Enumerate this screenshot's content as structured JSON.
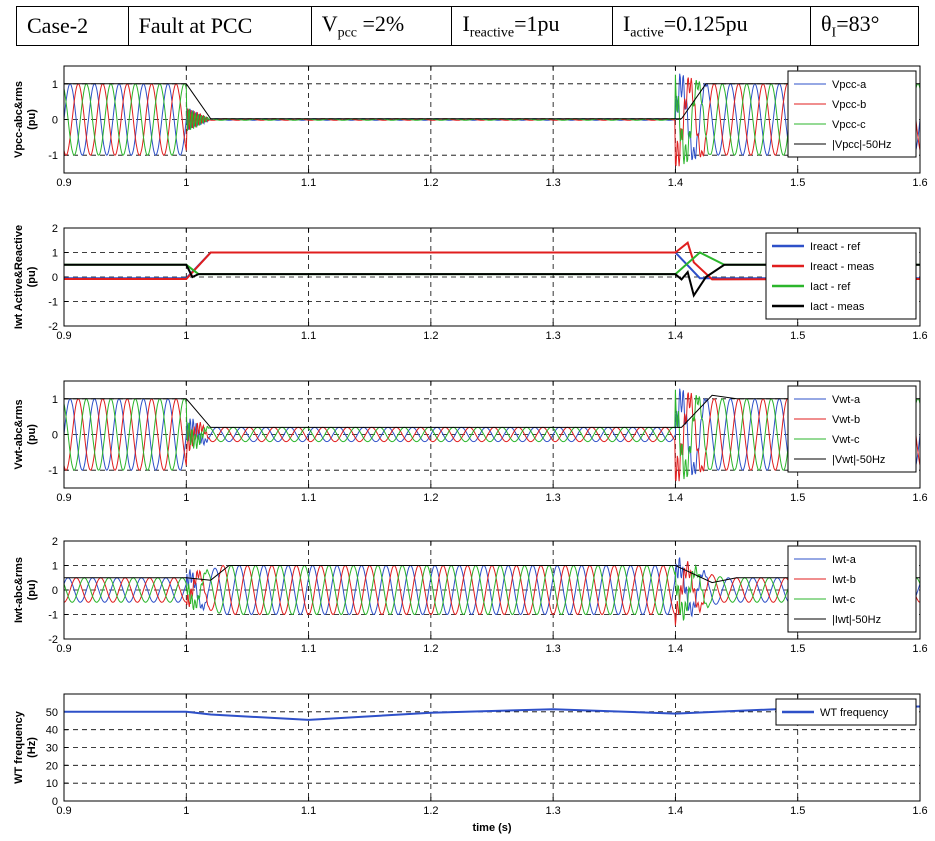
{
  "header": {
    "case": "Case-2",
    "fault": "Fault at PCC",
    "vpcc": {
      "sym": "V",
      "sub": "pcc",
      "val": " =2%"
    },
    "ireact": {
      "sym": "I",
      "sub": "reactive",
      "val": "=1pu"
    },
    "iact": {
      "sym": "I",
      "sub": "active",
      "val": "=0.125pu"
    },
    "theta": {
      "sym": "θ",
      "sub": "I",
      "val": "=83°"
    }
  },
  "colors": {
    "a": "#2e50c8",
    "b": "#e01e1e",
    "c": "#2bb52b",
    "black": "#000000",
    "freq": "#2e50c8"
  },
  "chart_data": [
    {
      "type": "line",
      "ylabel": "Vpcc-abc&rms\n(pu)",
      "xlim": [
        0.9,
        1.6
      ],
      "ylim": [
        -1.5,
        1.5
      ],
      "yticks": [
        "-1",
        "0",
        "1"
      ],
      "xticks": [
        "0.9",
        "1",
        "1.1",
        "1.2",
        "1.3",
        "1.4",
        "1.5",
        "1.6"
      ],
      "grid": true,
      "legend": "top-right",
      "series": [
        {
          "name": "Vpcc-a",
          "kind": "sine",
          "color": "a",
          "phase_deg": 0,
          "amp": [
            [
              0.9,
              1
            ],
            [
              1.0,
              1
            ],
            [
              1.0,
              0.02
            ],
            [
              1.4,
              0.02
            ],
            [
              1.4,
              1.0
            ],
            [
              1.6,
              1.0
            ]
          ]
        },
        {
          "name": "Vpcc-b",
          "kind": "sine",
          "color": "b",
          "phase_deg": -120,
          "amp": [
            [
              0.9,
              1
            ],
            [
              1.0,
              1
            ],
            [
              1.0,
              0.02
            ],
            [
              1.4,
              0.02
            ],
            [
              1.4,
              1.0
            ],
            [
              1.6,
              1.0
            ]
          ]
        },
        {
          "name": "Vpcc-c",
          "kind": "sine",
          "color": "c",
          "phase_deg": 120,
          "amp": [
            [
              0.9,
              1
            ],
            [
              1.0,
              1
            ],
            [
              1.0,
              0.02
            ],
            [
              1.4,
              0.02
            ],
            [
              1.4,
              1.0
            ],
            [
              1.6,
              1.0
            ]
          ]
        },
        {
          "name": "|Vpcc|-50Hz",
          "kind": "line",
          "color": "black",
          "points": [
            [
              0.9,
              1
            ],
            [
              1.0,
              1
            ],
            [
              1.02,
              0.02
            ],
            [
              1.405,
              0.02
            ],
            [
              1.425,
              1.0
            ],
            [
              1.6,
              1.0
            ]
          ]
        }
      ]
    },
    {
      "type": "line",
      "ylabel": "Iwt Active&Reactive\n(pu)",
      "xlim": [
        0.9,
        1.6
      ],
      "ylim": [
        -2,
        2
      ],
      "yticks": [
        "-2",
        "-1",
        "0",
        "1",
        "2"
      ],
      "xticks": [
        "0.9",
        "1",
        "1.1",
        "1.2",
        "1.3",
        "1.4",
        "1.5",
        "1.6"
      ],
      "grid": true,
      "legend": "top-right",
      "series": [
        {
          "name": "Ireact - ref",
          "kind": "line",
          "color": "a",
          "points": [
            [
              0.9,
              -0.05
            ],
            [
              1.0,
              -0.05
            ],
            [
              1.02,
              1.0
            ],
            [
              1.4,
              1.0
            ],
            [
              1.42,
              -0.05
            ],
            [
              1.6,
              -0.05
            ]
          ]
        },
        {
          "name": "Ireact - meas",
          "kind": "line",
          "color": "b",
          "points": [
            [
              0.9,
              -0.08
            ],
            [
              1.0,
              -0.08
            ],
            [
              1.02,
              1.0
            ],
            [
              1.4,
              1.0
            ],
            [
              1.41,
              1.4
            ],
            [
              1.415,
              0.6
            ],
            [
              1.43,
              -0.1
            ],
            [
              1.6,
              -0.08
            ]
          ]
        },
        {
          "name": "Iact - ref",
          "kind": "line",
          "color": "c",
          "points": [
            [
              0.9,
              0.5
            ],
            [
              1.0,
              0.5
            ],
            [
              1.01,
              0.12
            ],
            [
              1.4,
              0.12
            ],
            [
              1.42,
              1.0
            ],
            [
              1.44,
              0.5
            ],
            [
              1.6,
              0.5
            ]
          ]
        },
        {
          "name": "Iact - meas",
          "kind": "line",
          "color": "black",
          "points": [
            [
              0.9,
              0.5
            ],
            [
              1.0,
              0.5
            ],
            [
              1.005,
              0.0
            ],
            [
              1.01,
              0.12
            ],
            [
              1.4,
              0.12
            ],
            [
              1.405,
              -0.1
            ],
            [
              1.41,
              0.2
            ],
            [
              1.415,
              -0.75
            ],
            [
              1.425,
              0.0
            ],
            [
              1.44,
              0.5
            ],
            [
              1.6,
              0.5
            ]
          ]
        }
      ]
    },
    {
      "type": "line",
      "ylabel": "Vwt-abc&rms\n(pu)",
      "xlim": [
        0.9,
        1.6
      ],
      "ylim": [
        -1.5,
        1.5
      ],
      "yticks": [
        "-1",
        "0",
        "1"
      ],
      "xticks": [
        "0.9",
        "1",
        "1.1",
        "1.2",
        "1.3",
        "1.4",
        "1.5",
        "1.6"
      ],
      "grid": true,
      "legend": "top-right",
      "series": [
        {
          "name": "Vwt-a",
          "kind": "sine",
          "color": "a",
          "phase_deg": 0,
          "amp": [
            [
              0.9,
              1
            ],
            [
              1.0,
              1
            ],
            [
              1.0,
              0.2
            ],
            [
              1.4,
              0.2
            ],
            [
              1.4,
              1.0
            ],
            [
              1.6,
              1.0
            ]
          ]
        },
        {
          "name": "Vwt-b",
          "kind": "sine",
          "color": "b",
          "phase_deg": -120,
          "amp": [
            [
              0.9,
              1
            ],
            [
              1.0,
              1
            ],
            [
              1.0,
              0.2
            ],
            [
              1.4,
              0.2
            ],
            [
              1.4,
              1.0
            ],
            [
              1.6,
              1.0
            ]
          ]
        },
        {
          "name": "Vwt-c",
          "kind": "sine",
          "color": "c",
          "phase_deg": 120,
          "amp": [
            [
              0.9,
              1
            ],
            [
              1.0,
              1
            ],
            [
              1.0,
              0.2
            ],
            [
              1.4,
              0.2
            ],
            [
              1.4,
              1.0
            ],
            [
              1.6,
              1.0
            ]
          ]
        },
        {
          "name": "|Vwt|-50Hz",
          "kind": "line",
          "color": "black",
          "points": [
            [
              0.9,
              1
            ],
            [
              1.0,
              1
            ],
            [
              1.02,
              0.2
            ],
            [
              1.405,
              0.2
            ],
            [
              1.43,
              1.1
            ],
            [
              1.45,
              1.0
            ],
            [
              1.6,
              1.0
            ]
          ]
        }
      ]
    },
    {
      "type": "line",
      "ylabel": "Iwt-abc&rms\n(pu)",
      "xlim": [
        0.9,
        1.6
      ],
      "ylim": [
        -2,
        2
      ],
      "yticks": [
        "-2",
        "-1",
        "0",
        "1",
        "2"
      ],
      "xticks": [
        "0.9",
        "1",
        "1.1",
        "1.2",
        "1.3",
        "1.4",
        "1.5",
        "1.6"
      ],
      "grid": true,
      "legend": "top-right",
      "series": [
        {
          "name": "Iwt-a",
          "kind": "sine",
          "color": "a",
          "phase_deg": 30,
          "amp": [
            [
              0.9,
              0.5
            ],
            [
              1.0,
              0.5
            ],
            [
              1.03,
              1.0
            ],
            [
              1.4,
              1.0
            ],
            [
              1.44,
              0.5
            ],
            [
              1.6,
              0.5
            ]
          ]
        },
        {
          "name": "Iwt-b",
          "kind": "sine",
          "color": "b",
          "phase_deg": -90,
          "amp": [
            [
              0.9,
              0.5
            ],
            [
              1.0,
              0.5
            ],
            [
              1.03,
              1.0
            ],
            [
              1.4,
              1.0
            ],
            [
              1.44,
              0.5
            ],
            [
              1.6,
              0.5
            ]
          ]
        },
        {
          "name": "Iwt-c",
          "kind": "sine",
          "color": "c",
          "phase_deg": 150,
          "amp": [
            [
              0.9,
              0.5
            ],
            [
              1.0,
              0.5
            ],
            [
              1.03,
              1.0
            ],
            [
              1.4,
              1.0
            ],
            [
              1.44,
              0.5
            ],
            [
              1.6,
              0.5
            ]
          ]
        },
        {
          "name": "|Iwt|-50Hz",
          "kind": "line",
          "color": "black",
          "points": [
            [
              0.9,
              0.5
            ],
            [
              1.0,
              0.5
            ],
            [
              1.02,
              0.4
            ],
            [
              1.035,
              1.0
            ],
            [
              1.4,
              1.0
            ],
            [
              1.43,
              0.3
            ],
            [
              1.45,
              0.5
            ],
            [
              1.6,
              0.5
            ]
          ]
        }
      ]
    },
    {
      "type": "line",
      "ylabel": "WT frequency\n(Hz)",
      "xlabel": "time (s)",
      "xlim": [
        0.9,
        1.6
      ],
      "ylim": [
        0,
        60
      ],
      "yticks": [
        "0",
        "10",
        "20",
        "30",
        "40",
        "50"
      ],
      "xticks": [
        "0.9",
        "1",
        "1.1",
        "1.2",
        "1.3",
        "1.4",
        "1.5",
        "1.6"
      ],
      "grid": true,
      "legend": "top-right",
      "series": [
        {
          "name": "WT frequency",
          "kind": "line",
          "color": "freq",
          "points": [
            [
              0.9,
              50
            ],
            [
              1.0,
              50
            ],
            [
              1.02,
              48.5
            ],
            [
              1.1,
              45.5
            ],
            [
              1.2,
              49.5
            ],
            [
              1.3,
              51.5
            ],
            [
              1.4,
              49
            ],
            [
              1.45,
              50.5
            ],
            [
              1.5,
              52
            ],
            [
              1.6,
              53
            ]
          ]
        }
      ]
    }
  ]
}
